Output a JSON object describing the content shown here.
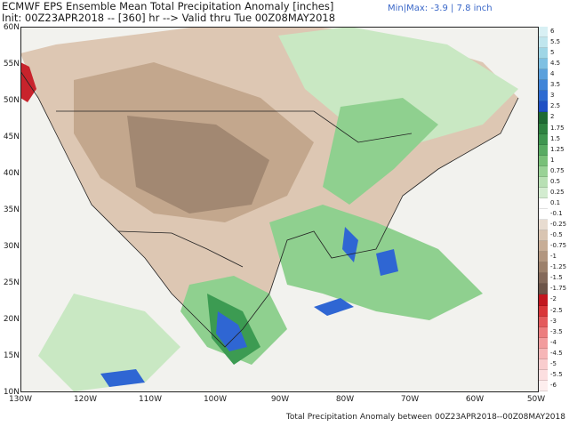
{
  "header": {
    "title_line1": "ECMWF EPS Ensemble Mean Total Precipitation Anomaly [inches]",
    "title_line2": "Init: 00Z23APR2018 -- [360] hr --> Valid thru Tue 00Z08MAY2018",
    "minmax": "Min|Max: -3.9 | 7.8 inch"
  },
  "footer": "Total Precipitation Anomaly between 00Z23APR2018--00Z08MAY2018",
  "map": {
    "lat_labels": [
      "60N",
      "55N",
      "50N",
      "45N",
      "40N",
      "35N",
      "30N",
      "25N",
      "20N",
      "15N",
      "10N"
    ],
    "lon_labels": [
      "130W",
      "120W",
      "110W",
      "100W",
      "90W",
      "80W",
      "70W",
      "60W",
      "50W"
    ],
    "colors": {
      "ocean": "#f2f2ee",
      "dry_light": "#ddc7b3",
      "dry_mid": "#c3a78d",
      "dry_dark": "#a28872",
      "wet_light": "#c9e8c3",
      "wet_mid": "#8fd08f",
      "wet_dark": "#3c9b52",
      "wet_blue": "#2f66d3",
      "extreme_red": "#c8232c"
    }
  },
  "legend": {
    "labels": [
      "6",
      "5.5",
      "5",
      "4.5",
      "4",
      "3.5",
      "3",
      "2.5",
      "2",
      "1.75",
      "1.5",
      "1.25",
      "1",
      "0.75",
      "0.5",
      "0.25",
      "0.1",
      "-0.1",
      "-0.25",
      "-0.5",
      "-0.75",
      "-1",
      "-1.25",
      "-1.5",
      "-1.75",
      "-2",
      "-2.5",
      "-3",
      "-3.5",
      "-4",
      "-4.5",
      "-5",
      "-5.5",
      "-6"
    ],
    "colors": [
      "#d8f0f4",
      "#c0e6ee",
      "#9fd6e6",
      "#7ec0e2",
      "#5aa0dc",
      "#3f84d8",
      "#2d6bd1",
      "#1f50c4",
      "#1f6a34",
      "#2e8241",
      "#3f9650",
      "#58ab62",
      "#78c078",
      "#99d296",
      "#b8e0b4",
      "#d3ecd0",
      "#ffffff",
      "#ffffff",
      "#e8dcd0",
      "#d9c5b2",
      "#c7ad96",
      "#b2967f",
      "#9c806b",
      "#84695a",
      "#6d5549",
      "#c2171f",
      "#d93639",
      "#e45a5c",
      "#ec7d7e",
      "#f29c9d",
      "#f6b6b7",
      "#f9cdce",
      "#fcdfe0",
      "#fdeeee"
    ]
  }
}
